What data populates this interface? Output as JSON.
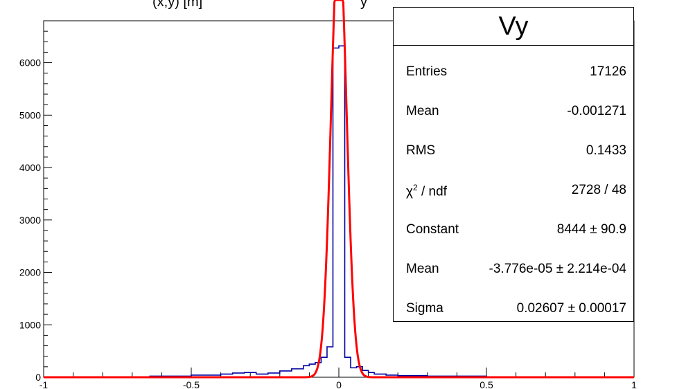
{
  "chart_data": {
    "type": "histogram",
    "title_fragment": "(x,y) [m]",
    "title_fragment_right": "y",
    "xlim": [
      -1,
      1
    ],
    "ylim": [
      0,
      6800
    ],
    "x_ticks": [
      -1,
      -0.5,
      0,
      0.5,
      1
    ],
    "x_tick_labels": [
      "-1",
      "-0.5",
      "0",
      "0.5",
      "1"
    ],
    "y_ticks": [
      0,
      1000,
      2000,
      3000,
      4000,
      5000,
      6000
    ],
    "y_tick_labels": [
      "0",
      "1000",
      "2000",
      "3000",
      "4000",
      "5000",
      "6000"
    ],
    "histogram": {
      "name": "Vy",
      "color": "#0000a0",
      "bin_edges": [
        -0.64,
        -0.5,
        -0.4,
        -0.36,
        -0.32,
        -0.28,
        -0.24,
        -0.2,
        -0.16,
        -0.12,
        -0.1,
        -0.08,
        -0.06,
        -0.04,
        -0.02,
        0.0,
        0.02,
        0.04,
        0.06,
        0.08,
        0.1,
        0.12,
        0.16,
        0.2,
        0.3,
        0.5,
        0.52
      ],
      "counts": [
        20,
        40,
        60,
        80,
        90,
        60,
        80,
        120,
        160,
        220,
        250,
        280,
        380,
        580,
        6280,
        6320,
        380,
        180,
        200,
        130,
        90,
        60,
        40,
        30,
        20,
        0
      ]
    },
    "fit": {
      "type": "gaus",
      "color": "#ff0000",
      "constant": 8444,
      "mean": -3.776e-05,
      "sigma": 0.02607,
      "x_range": [
        -1,
        1
      ]
    }
  },
  "stats": {
    "title": "Vy",
    "rows": [
      {
        "label": "Entries",
        "value": "17126"
      },
      {
        "label": "Mean",
        "value": "-0.001271"
      },
      {
        "label": "RMS",
        "value": "0.1433"
      },
      {
        "label_main": "χ",
        "label_sup": "2",
        "label_rest": " / ndf",
        "value": "2728 / 48"
      },
      {
        "label": "Constant",
        "value": "8444 ± 90.9"
      },
      {
        "label": "Mean",
        "value": "-3.776e-05 ± 2.214e-04"
      },
      {
        "label": "Sigma",
        "value": "0.02607 ± 0.00017"
      }
    ]
  }
}
